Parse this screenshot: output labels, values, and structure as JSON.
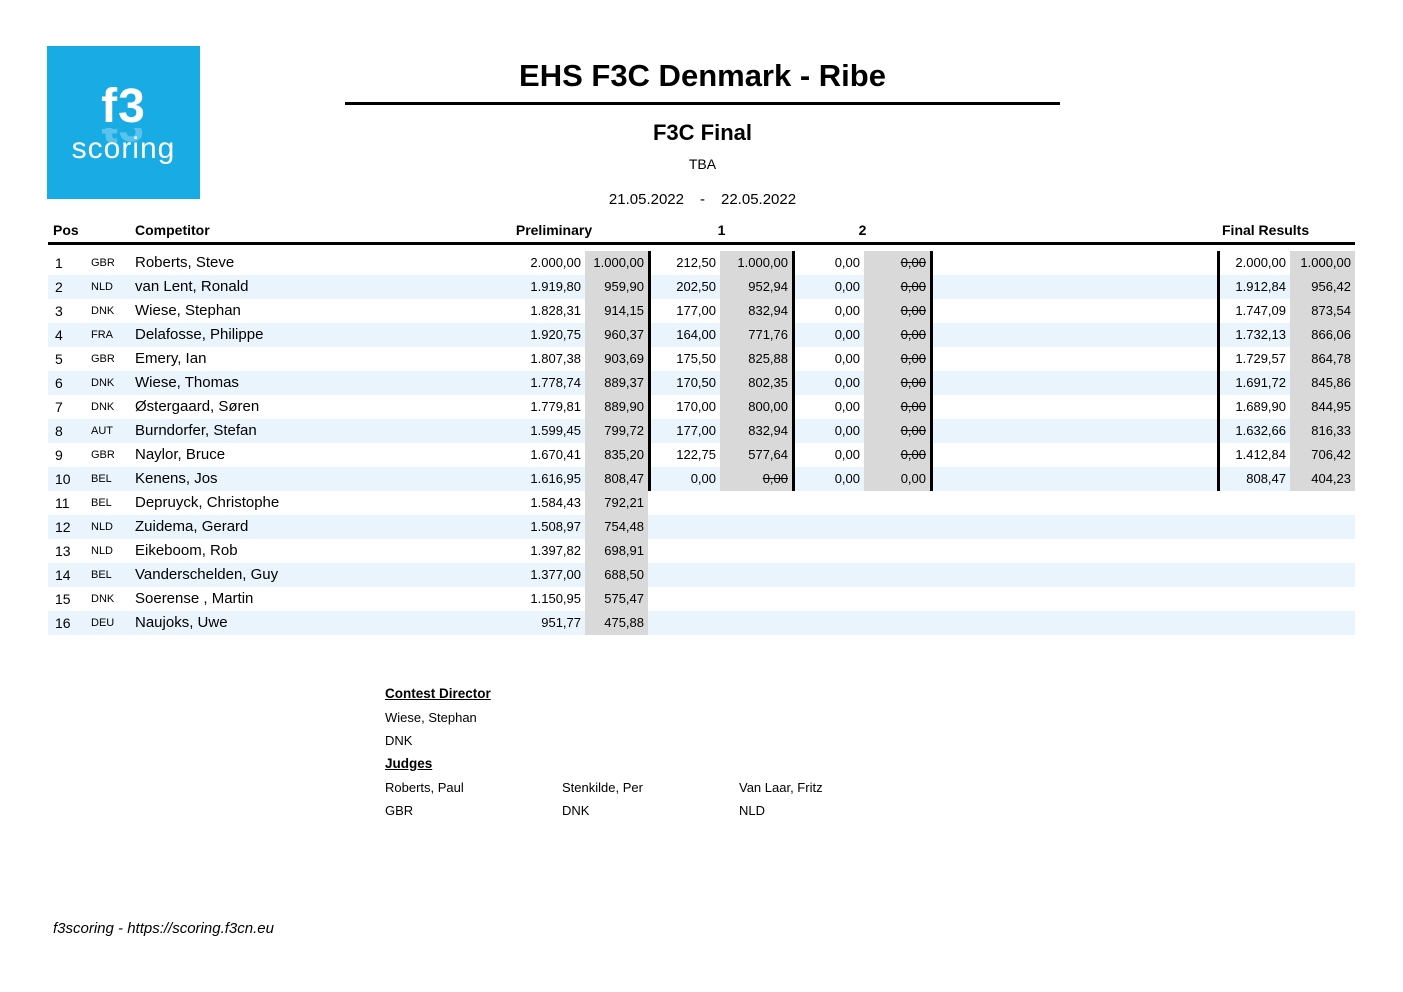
{
  "page": {
    "title": "EHS F3C Denmark - Ribe",
    "subtitle": "F3C Final",
    "site": "TBA",
    "date_from": "21.05.2022",
    "date_separator": "-",
    "date_to": "22.05.2022"
  },
  "logo": {
    "line1": "f3",
    "line2": "scoring",
    "background": "#19ace4"
  },
  "colors": {
    "accent": "#19ace4",
    "stripe": "#e9f4fc",
    "norm_column": "#d9d9d9"
  },
  "table": {
    "headers": {
      "pos": "Pos",
      "competitor": "Competitor",
      "preliminary": "Preliminary",
      "round1": "1",
      "round2": "2",
      "final": "Final Results"
    },
    "rows": [
      {
        "pos": "1",
        "country": "GBR",
        "name": "Roberts, Steve",
        "prelim_raw": "2.000,00",
        "prelim_norm": "1.000,00",
        "finalist": true,
        "r1_raw": "212,50",
        "r1_norm": "1.000,00",
        "r1_struck": false,
        "r2_raw": "0,00",
        "r2_norm": "0,00",
        "r2_struck": true,
        "final_raw": "2.000,00",
        "final_norm": "1.000,00"
      },
      {
        "pos": "2",
        "country": "NLD",
        "name": "van Lent, Ronald",
        "prelim_raw": "1.919,80",
        "prelim_norm": "959,90",
        "finalist": true,
        "r1_raw": "202,50",
        "r1_norm": "952,94",
        "r1_struck": false,
        "r2_raw": "0,00",
        "r2_norm": "0,00",
        "r2_struck": true,
        "final_raw": "1.912,84",
        "final_norm": "956,42"
      },
      {
        "pos": "3",
        "country": "DNK",
        "name": "Wiese, Stephan",
        "prelim_raw": "1.828,31",
        "prelim_norm": "914,15",
        "finalist": true,
        "r1_raw": "177,00",
        "r1_norm": "832,94",
        "r1_struck": false,
        "r2_raw": "0,00",
        "r2_norm": "0,00",
        "r2_struck": true,
        "final_raw": "1.747,09",
        "final_norm": "873,54"
      },
      {
        "pos": "4",
        "country": "FRA",
        "name": "Delafosse, Philippe",
        "prelim_raw": "1.920,75",
        "prelim_norm": "960,37",
        "finalist": true,
        "r1_raw": "164,00",
        "r1_norm": "771,76",
        "r1_struck": false,
        "r2_raw": "0,00",
        "r2_norm": "0,00",
        "r2_struck": true,
        "final_raw": "1.732,13",
        "final_norm": "866,06"
      },
      {
        "pos": "5",
        "country": "GBR",
        "name": "Emery, Ian",
        "prelim_raw": "1.807,38",
        "prelim_norm": "903,69",
        "finalist": true,
        "r1_raw": "175,50",
        "r1_norm": "825,88",
        "r1_struck": false,
        "r2_raw": "0,00",
        "r2_norm": "0,00",
        "r2_struck": true,
        "final_raw": "1.729,57",
        "final_norm": "864,78"
      },
      {
        "pos": "6",
        "country": "DNK",
        "name": "Wiese, Thomas",
        "prelim_raw": "1.778,74",
        "prelim_norm": "889,37",
        "finalist": true,
        "r1_raw": "170,50",
        "r1_norm": "802,35",
        "r1_struck": false,
        "r2_raw": "0,00",
        "r2_norm": "0,00",
        "r2_struck": true,
        "final_raw": "1.691,72",
        "final_norm": "845,86"
      },
      {
        "pos": "7",
        "country": "DNK",
        "name": "Østergaard, Søren",
        "prelim_raw": "1.779,81",
        "prelim_norm": "889,90",
        "finalist": true,
        "r1_raw": "170,00",
        "r1_norm": "800,00",
        "r1_struck": false,
        "r2_raw": "0,00",
        "r2_norm": "0,00",
        "r2_struck": true,
        "final_raw": "1.689,90",
        "final_norm": "844,95"
      },
      {
        "pos": "8",
        "country": "AUT",
        "name": "Burndorfer, Stefan",
        "prelim_raw": "1.599,45",
        "prelim_norm": "799,72",
        "finalist": true,
        "r1_raw": "177,00",
        "r1_norm": "832,94",
        "r1_struck": false,
        "r2_raw": "0,00",
        "r2_norm": "0,00",
        "r2_struck": true,
        "final_raw": "1.632,66",
        "final_norm": "816,33"
      },
      {
        "pos": "9",
        "country": "GBR",
        "name": "Naylor, Bruce",
        "prelim_raw": "1.670,41",
        "prelim_norm": "835,20",
        "finalist": true,
        "r1_raw": "122,75",
        "r1_norm": "577,64",
        "r1_struck": false,
        "r2_raw": "0,00",
        "r2_norm": "0,00",
        "r2_struck": true,
        "final_raw": "1.412,84",
        "final_norm": "706,42"
      },
      {
        "pos": "10",
        "country": "BEL",
        "name": "Kenens, Jos",
        "prelim_raw": "1.616,95",
        "prelim_norm": "808,47",
        "finalist": true,
        "r1_raw": "0,00",
        "r1_norm": "0,00",
        "r1_struck": true,
        "r2_raw": "0,00",
        "r2_norm": "0,00",
        "r2_struck": false,
        "final_raw": "808,47",
        "final_norm": "404,23"
      },
      {
        "pos": "11",
        "country": "BEL",
        "name": "Depruyck, Christophe",
        "prelim_raw": "1.584,43",
        "prelim_norm": "792,21",
        "finalist": false,
        "r1_raw": "",
        "r1_norm": "",
        "r1_struck": false,
        "r2_raw": "",
        "r2_norm": "",
        "r2_struck": false,
        "final_raw": "",
        "final_norm": ""
      },
      {
        "pos": "12",
        "country": "NLD",
        "name": "Zuidema, Gerard",
        "prelim_raw": "1.508,97",
        "prelim_norm": "754,48",
        "finalist": false,
        "r1_raw": "",
        "r1_norm": "",
        "r1_struck": false,
        "r2_raw": "",
        "r2_norm": "",
        "r2_struck": false,
        "final_raw": "",
        "final_norm": ""
      },
      {
        "pos": "13",
        "country": "NLD",
        "name": "Eikeboom, Rob",
        "prelim_raw": "1.397,82",
        "prelim_norm": "698,91",
        "finalist": false,
        "r1_raw": "",
        "r1_norm": "",
        "r1_struck": false,
        "r2_raw": "",
        "r2_norm": "",
        "r2_struck": false,
        "final_raw": "",
        "final_norm": ""
      },
      {
        "pos": "14",
        "country": "BEL",
        "name": "Vanderschelden, Guy",
        "prelim_raw": "1.377,00",
        "prelim_norm": "688,50",
        "finalist": false,
        "r1_raw": "",
        "r1_norm": "",
        "r1_struck": false,
        "r2_raw": "",
        "r2_norm": "",
        "r2_struck": false,
        "final_raw": "",
        "final_norm": ""
      },
      {
        "pos": "15",
        "country": "DNK",
        "name": "Soerense , Martin",
        "prelim_raw": "1.150,95",
        "prelim_norm": "575,47",
        "finalist": false,
        "r1_raw": "",
        "r1_norm": "",
        "r1_struck": false,
        "r2_raw": "",
        "r2_norm": "",
        "r2_struck": false,
        "final_raw": "",
        "final_norm": ""
      },
      {
        "pos": "16",
        "country": "DEU",
        "name": "Naujoks, Uwe",
        "prelim_raw": "951,77",
        "prelim_norm": "475,88",
        "finalist": false,
        "r1_raw": "",
        "r1_norm": "",
        "r1_struck": false,
        "r2_raw": "",
        "r2_norm": "",
        "r2_struck": false,
        "final_raw": "",
        "final_norm": ""
      }
    ]
  },
  "officials": {
    "contest_director_label": "Contest Director",
    "contest_director": {
      "name": "Wiese, Stephan",
      "country": "DNK"
    },
    "judges_label": "Judges",
    "judges": [
      {
        "name": "Roberts, Paul",
        "country": "GBR"
      },
      {
        "name": "Stenkilde, Per",
        "country": "DNK"
      },
      {
        "name": "Van Laar, Fritz",
        "country": "NLD"
      }
    ]
  },
  "footer": {
    "text": "f3scoring - https://scoring.f3cn.eu"
  }
}
